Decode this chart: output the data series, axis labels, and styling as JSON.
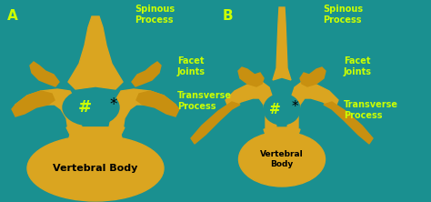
{
  "bg_color": "#1A9090",
  "label_color": "#CCFF00",
  "bone_light": "#DAA520",
  "bone_mid": "#C89010",
  "bone_dark": "#A07010",
  "title_A": "A",
  "title_B": "B",
  "label_spinous": "Spinous\nProcess",
  "label_facet": "Facet\nJoints",
  "label_transverse": "Transverse\nProcess",
  "label_vertebral_A": "Vertebral Body",
  "label_vertebral_B": "Vertebral\nBody",
  "label_hash": "#",
  "label_star": "*",
  "figsize": [
    4.74,
    2.22
  ],
  "dpi": 100
}
